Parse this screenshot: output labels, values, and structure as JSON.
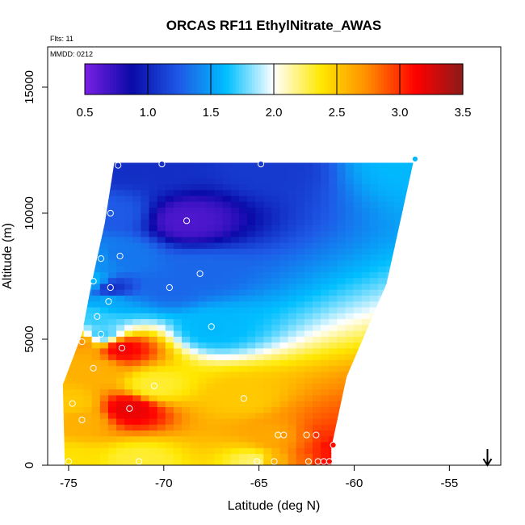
{
  "header": {
    "flights_label": "Flts: 11",
    "date_label": "MMDD: 0212"
  },
  "chart_data": {
    "type": "heatmap",
    "title": "ORCAS RF11 EthylNitrate_AWAS",
    "xlabel": "Latitude (deg N)",
    "ylabel": "Altitude (m)",
    "xlim": [
      -76.1,
      -52.3
    ],
    "ylim": [
      0,
      16600
    ],
    "x_ticks": [
      -75,
      -70,
      -65,
      -60,
      -55
    ],
    "y_ticks": [
      0,
      5000,
      10000,
      15000
    ],
    "colorbar": {
      "range": [
        0.5,
        3.5
      ],
      "ticks": [
        "0.5",
        "1.0",
        "1.5",
        "2.0",
        "2.5",
        "3.0",
        "3.5"
      ],
      "colors": [
        "#7a1fe6",
        "#0a0aa8",
        "#1e5ae6",
        "#00bfff",
        "#ffffff",
        "#ffe800",
        "#ff8a00",
        "#ff0000",
        "#8c1a1a"
      ]
    },
    "arrow_latitude": -53,
    "samples": [
      {
        "lat": -72.4,
        "alt": 11900,
        "value": 1.05
      },
      {
        "lat": -70.1,
        "alt": 11950,
        "value": 1.05
      },
      {
        "lat": -64.9,
        "alt": 11950,
        "value": 1.1
      },
      {
        "lat": -56.8,
        "alt": 12150,
        "value": 1.6
      },
      {
        "lat": -72.8,
        "alt": 10000,
        "value": 1.25
      },
      {
        "lat": -68.8,
        "alt": 9700,
        "value": 0.65
      },
      {
        "lat": -73.3,
        "alt": 8200,
        "value": 1.45
      },
      {
        "lat": -72.3,
        "alt": 8300,
        "value": 1.35
      },
      {
        "lat": -73.7,
        "alt": 7300,
        "value": 1.6
      },
      {
        "lat": -72.8,
        "alt": 7050,
        "value": 1.05
      },
      {
        "lat": -69.7,
        "alt": 7050,
        "value": 1.3
      },
      {
        "lat": -68.1,
        "alt": 7600,
        "value": 1.3
      },
      {
        "lat": -72.9,
        "alt": 6500,
        "value": 1.55
      },
      {
        "lat": -73.5,
        "alt": 5900,
        "value": 1.7
      },
      {
        "lat": -73.3,
        "alt": 5200,
        "value": 1.7
      },
      {
        "lat": -67.5,
        "alt": 5500,
        "value": 1.6
      },
      {
        "lat": -74.3,
        "alt": 4900,
        "value": 2.7
      },
      {
        "lat": -72.2,
        "alt": 4650,
        "value": 3.15
      },
      {
        "lat": -73.7,
        "alt": 3850,
        "value": 2.6
      },
      {
        "lat": -70.5,
        "alt": 3150,
        "value": 2.3
      },
      {
        "lat": -74.8,
        "alt": 2450,
        "value": 2.5
      },
      {
        "lat": -65.8,
        "alt": 2650,
        "value": 2.5
      },
      {
        "lat": -71.8,
        "alt": 2250,
        "value": 3.2
      },
      {
        "lat": -74.3,
        "alt": 1800,
        "value": 2.6
      },
      {
        "lat": -64.0,
        "alt": 1200,
        "value": 2.6
      },
      {
        "lat": -63.7,
        "alt": 1200,
        "value": 2.7
      },
      {
        "lat": -62.5,
        "alt": 1200,
        "value": 2.8
      },
      {
        "lat": -62.0,
        "alt": 1200,
        "value": 3.0
      },
      {
        "lat": -61.1,
        "alt": 800,
        "value": 3.1
      },
      {
        "lat": -75.0,
        "alt": 150,
        "value": 2.4
      },
      {
        "lat": -71.3,
        "alt": 150,
        "value": 2.3
      },
      {
        "lat": -65.1,
        "alt": 150,
        "value": 2.2
      },
      {
        "lat": -64.2,
        "alt": 150,
        "value": 2.6
      },
      {
        "lat": -62.4,
        "alt": 150,
        "value": 2.8
      },
      {
        "lat": -61.9,
        "alt": 150,
        "value": 3.0
      },
      {
        "lat": -61.6,
        "alt": 150,
        "value": 3.1
      },
      {
        "lat": -61.3,
        "alt": 150,
        "value": 3.1
      }
    ]
  }
}
